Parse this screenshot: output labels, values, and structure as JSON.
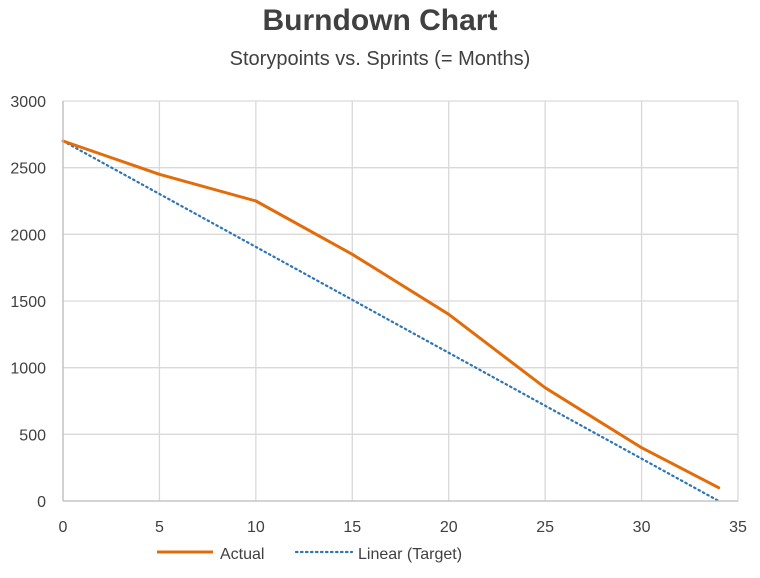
{
  "chart_data": {
    "type": "line",
    "title": "Burndown Chart",
    "subtitle": "Storypoints vs. Sprints (= Months)",
    "xlabel": "",
    "ylabel": "",
    "xlim": [
      0,
      35
    ],
    "ylim": [
      0,
      3000
    ],
    "xticks": [
      "0",
      "5",
      "10",
      "15",
      "20",
      "25",
      "30",
      "35"
    ],
    "yticks": [
      "0",
      "500",
      "1000",
      "1500",
      "2000",
      "2500",
      "3000"
    ],
    "grid": true,
    "legend": "bottom",
    "series": [
      {
        "name": "Actual",
        "color": "#E36C0A",
        "style": "solid",
        "x": [
          0,
          5,
          10,
          15,
          20,
          25,
          30,
          34
        ],
        "y": [
          2700,
          2450,
          2250,
          1850,
          1400,
          850,
          400,
          100
        ]
      },
      {
        "name": "Linear (Target)",
        "color": "#2E75B6",
        "style": "dotted",
        "x": [
          0,
          34
        ],
        "y": [
          2700,
          0
        ]
      }
    ]
  }
}
